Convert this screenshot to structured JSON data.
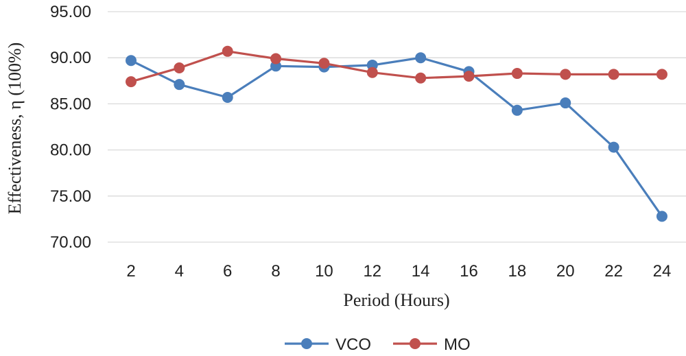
{
  "chart_data": {
    "type": "line",
    "title": "",
    "xlabel": "Period (Hours)",
    "ylabel": "Effectiveness, η (100%)",
    "categories": [
      "2",
      "4",
      "6",
      "8",
      "10",
      "12",
      "14",
      "16",
      "18",
      "20",
      "22",
      "24"
    ],
    "yticks": [
      "70.00",
      "75.00",
      "80.00",
      "85.00",
      "90.00",
      "95.00"
    ],
    "ylim": [
      70,
      95
    ],
    "grid": true,
    "legend_position": "bottom",
    "series": [
      {
        "name": "VCO",
        "color": "#4a7ebb",
        "values": [
          89.7,
          87.1,
          85.7,
          89.1,
          89.0,
          89.2,
          90.0,
          88.5,
          84.3,
          85.1,
          80.3,
          72.8
        ]
      },
      {
        "name": "MO",
        "color": "#c0504d",
        "values": [
          87.4,
          88.9,
          90.7,
          89.9,
          89.4,
          88.4,
          87.8,
          88.0,
          88.3,
          88.2,
          88.2,
          88.2
        ]
      }
    ]
  }
}
